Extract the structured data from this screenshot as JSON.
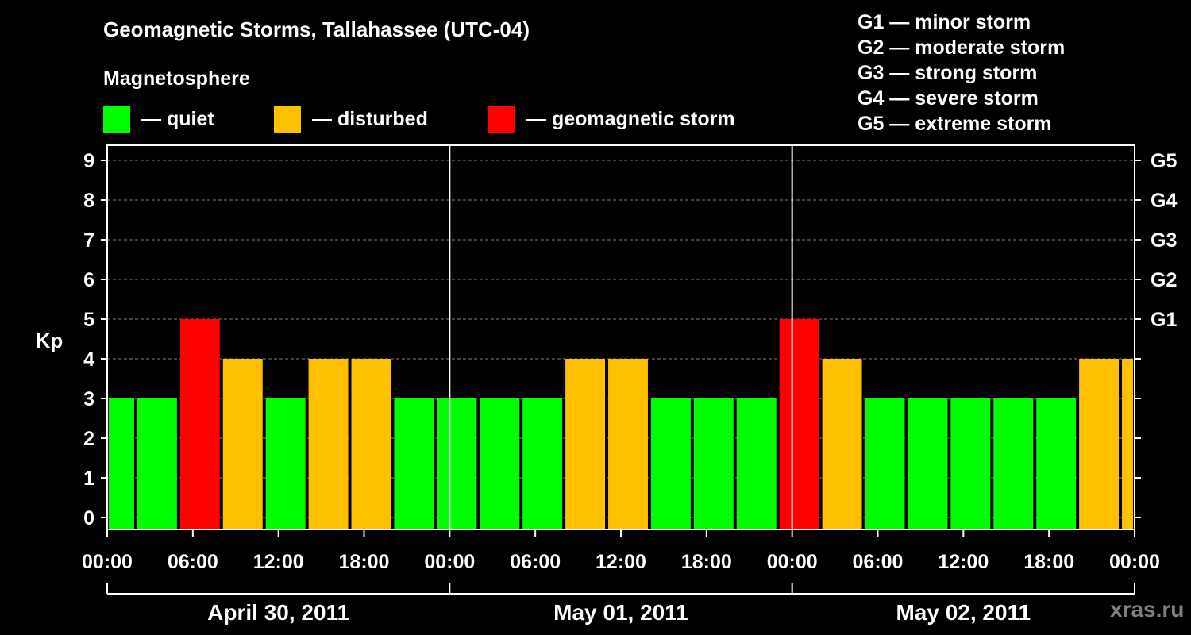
{
  "title": "Geomagnetic Storms, Tallahassee (UTC-04)",
  "subtitle": "Magnetosphere",
  "legend": [
    {
      "label": "— quiet",
      "color": "#00ff00"
    },
    {
      "label": "— disturbed",
      "color": "#ffc000"
    },
    {
      "label": "— geomagnetic storm",
      "color": "#ff0000"
    }
  ],
  "g_legend": [
    "G1 — minor storm",
    "G2 — moderate storm",
    "G3 — strong storm",
    "G4 — severe storm",
    "G5 — extreme storm"
  ],
  "watermark": "xras.ru",
  "chart_data": {
    "type": "bar",
    "title": "Geomagnetic Storms, Tallahassee (UTC-04)",
    "ylabel": "Kp",
    "ylim": [
      0,
      9
    ],
    "y_ticks": [
      "0",
      "1",
      "2",
      "3",
      "4",
      "5",
      "6",
      "7",
      "8",
      "9"
    ],
    "right_ticks": [
      {
        "label": "G1",
        "kp": 5
      },
      {
        "label": "G2",
        "kp": 6
      },
      {
        "label": "G3",
        "kp": 7
      },
      {
        "label": "G4",
        "kp": 8
      },
      {
        "label": "G5",
        "kp": 9
      }
    ],
    "x_ticks": [
      "00:00",
      "06:00",
      "12:00",
      "18:00",
      "00:00",
      "06:00",
      "12:00",
      "18:00",
      "00:00",
      "06:00",
      "12:00",
      "18:00",
      "00:00"
    ],
    "days": [
      "April 30, 2011",
      "May 01, 2011",
      "May 02, 2011"
    ],
    "hours_span": 72,
    "grid": "dashed horizontal",
    "colors": {
      "quiet": "#00ff00",
      "disturbed": "#ffc000",
      "storm": "#ff0000"
    },
    "bars": [
      {
        "start_hour": 0,
        "end_hour": 2,
        "kp": 3,
        "level": "quiet"
      },
      {
        "start_hour": 2,
        "end_hour": 5,
        "kp": 3,
        "level": "quiet"
      },
      {
        "start_hour": 5,
        "end_hour": 8,
        "kp": 5,
        "level": "storm"
      },
      {
        "start_hour": 8,
        "end_hour": 11,
        "kp": 4,
        "level": "disturbed"
      },
      {
        "start_hour": 11,
        "end_hour": 14,
        "kp": 3,
        "level": "quiet"
      },
      {
        "start_hour": 14,
        "end_hour": 17,
        "kp": 4,
        "level": "disturbed"
      },
      {
        "start_hour": 17,
        "end_hour": 20,
        "kp": 4,
        "level": "disturbed"
      },
      {
        "start_hour": 20,
        "end_hour": 23,
        "kp": 3,
        "level": "quiet"
      },
      {
        "start_hour": 23,
        "end_hour": 26,
        "kp": 3,
        "level": "quiet"
      },
      {
        "start_hour": 26,
        "end_hour": 29,
        "kp": 3,
        "level": "quiet"
      },
      {
        "start_hour": 29,
        "end_hour": 32,
        "kp": 3,
        "level": "quiet"
      },
      {
        "start_hour": 32,
        "end_hour": 35,
        "kp": 4,
        "level": "disturbed"
      },
      {
        "start_hour": 35,
        "end_hour": 38,
        "kp": 4,
        "level": "disturbed"
      },
      {
        "start_hour": 38,
        "end_hour": 41,
        "kp": 3,
        "level": "quiet"
      },
      {
        "start_hour": 41,
        "end_hour": 44,
        "kp": 3,
        "level": "quiet"
      },
      {
        "start_hour": 44,
        "end_hour": 47,
        "kp": 3,
        "level": "quiet"
      },
      {
        "start_hour": 47,
        "end_hour": 50,
        "kp": 5,
        "level": "storm"
      },
      {
        "start_hour": 50,
        "end_hour": 53,
        "kp": 4,
        "level": "disturbed"
      },
      {
        "start_hour": 53,
        "end_hour": 56,
        "kp": 3,
        "level": "quiet"
      },
      {
        "start_hour": 56,
        "end_hour": 59,
        "kp": 3,
        "level": "quiet"
      },
      {
        "start_hour": 59,
        "end_hour": 62,
        "kp": 3,
        "level": "quiet"
      },
      {
        "start_hour": 62,
        "end_hour": 65,
        "kp": 3,
        "level": "quiet"
      },
      {
        "start_hour": 65,
        "end_hour": 68,
        "kp": 3,
        "level": "quiet"
      },
      {
        "start_hour": 68,
        "end_hour": 71,
        "kp": 4,
        "level": "disturbed"
      },
      {
        "start_hour": 71,
        "end_hour": 72,
        "kp": 4,
        "level": "disturbed"
      }
    ]
  }
}
